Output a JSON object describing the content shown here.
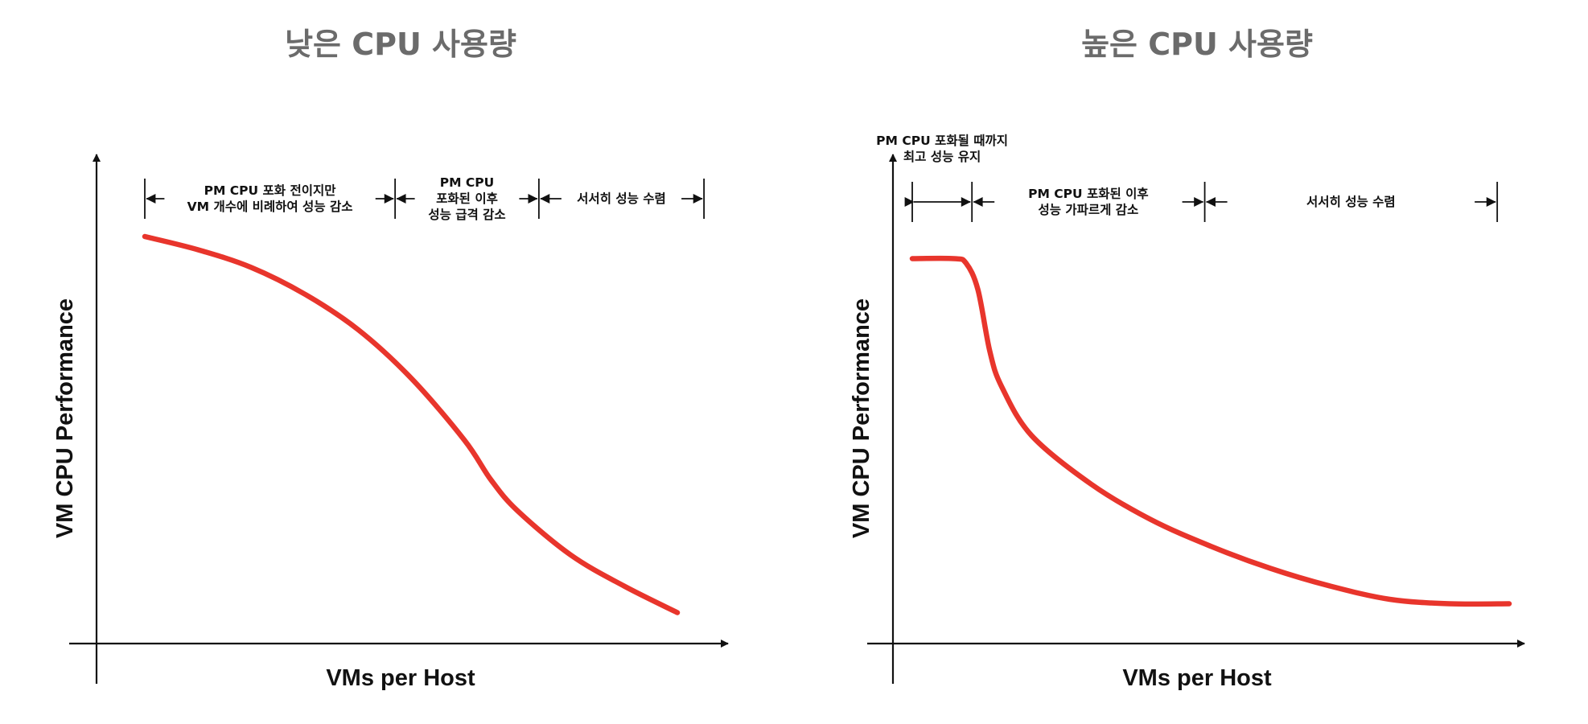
{
  "chart_data": [
    {
      "type": "line",
      "title": "낮은 CPU 사용량",
      "xlabel": "VMs per Host",
      "ylabel": "VM CPU Performance",
      "grid": false,
      "curve_color": "#e8352c",
      "series": [
        {
          "x": [
            0,
            0.1,
            0.2,
            0.3,
            0.4,
            0.5,
            0.6,
            0.65,
            0.7,
            0.8,
            0.9,
            1.0
          ],
          "values": [
            0.92,
            0.89,
            0.85,
            0.79,
            0.71,
            0.6,
            0.46,
            0.37,
            0.3,
            0.2,
            0.13,
            0.07
          ]
        }
      ],
      "annotations": [
        {
          "x_range": [
            0,
            0.47
          ],
          "lines": [
            "PM CPU 포화 전이지만",
            "VM 개수에 비례하여 성능 감소"
          ]
        },
        {
          "x_range": [
            0.47,
            0.74
          ],
          "lines": [
            "PM CPU",
            "포화된 이후",
            "성능 급격 감소"
          ]
        },
        {
          "x_range": [
            0.74,
            1.05
          ],
          "lines": [
            "서서히 성능 수렴"
          ]
        }
      ]
    },
    {
      "type": "line",
      "title": "높은 CPU 사용량",
      "xlabel": "VMs per Host",
      "ylabel": "VM CPU Performance",
      "grid": false,
      "curve_color": "#e8352c",
      "series": [
        {
          "x": [
            0,
            0.07,
            0.09,
            0.11,
            0.13,
            0.15,
            0.2,
            0.3,
            0.4,
            0.5,
            0.6,
            0.7,
            0.8,
            0.9,
            1.0
          ],
          "values": [
            0.87,
            0.87,
            0.86,
            0.8,
            0.66,
            0.58,
            0.47,
            0.36,
            0.28,
            0.22,
            0.17,
            0.13,
            0.1,
            0.09,
            0.09
          ]
        }
      ],
      "annotations": [
        {
          "x_range": [
            0,
            0.1
          ],
          "lines": [
            "PM CPU 포화될 때까지",
            "최고 성능 유지"
          ]
        },
        {
          "x_range": [
            0.1,
            0.49
          ],
          "lines": [
            "PM CPU 포화된 이후",
            "성능 가파르게 감소"
          ]
        },
        {
          "x_range": [
            0.49,
            0.98
          ],
          "lines": [
            "서서히 성능 수렴"
          ]
        }
      ]
    }
  ]
}
